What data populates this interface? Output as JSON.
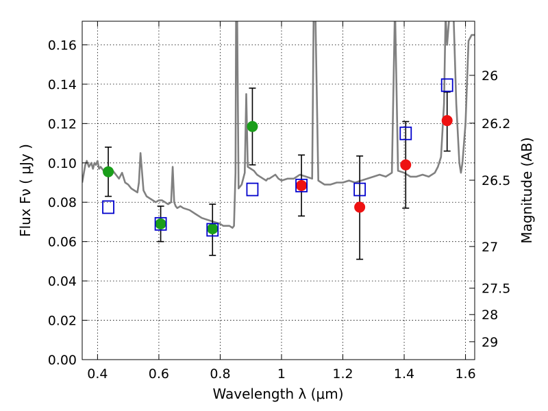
{
  "chart_data": {
    "type": "scatter",
    "title": "",
    "xlabel": "Wavelength  λ (μm)",
    "ylabel": "Flux  Fν  ( μJy )",
    "ylabel_right": "Magnitude (AB)",
    "xlim": [
      0.35,
      1.63
    ],
    "ylim": [
      0.0,
      0.172
    ],
    "grid": true,
    "x_ticks": [
      0.4,
      0.6,
      0.8,
      1.0,
      1.2,
      1.4,
      1.6
    ],
    "x_tick_labels": [
      "0.4",
      "0.6",
      "0.8",
      "1",
      "1.2",
      "1.4",
      "1.6"
    ],
    "y_ticks": [
      0.0,
      0.02,
      0.04,
      0.06,
      0.08,
      0.1,
      0.12,
      0.14,
      0.16
    ],
    "y_tick_labels": [
      "0.00",
      "0.02",
      "0.04",
      "0.06",
      "0.08",
      "0.10",
      "0.12",
      "0.14",
      "0.16"
    ],
    "right_ticks": [
      {
        "label": "26",
        "flux": 0.1445
      },
      {
        "label": "26.2",
        "flux": 0.1202
      },
      {
        "label": "26.5",
        "flux": 0.0912
      },
      {
        "label": "27",
        "flux": 0.0575
      },
      {
        "label": "27.5",
        "flux": 0.0363
      },
      {
        "label": "28",
        "flux": 0.0229
      },
      {
        "label": "29",
        "flux": 0.0091
      }
    ],
    "series": [
      {
        "color": "#1a9e1a",
        "marker": "circle",
        "points": [
          {
            "x": 0.435,
            "y": 0.0955,
            "err": [
              0.083,
              0.108
            ]
          },
          {
            "x": 0.606,
            "y": 0.069,
            "err": [
              0.06,
              0.078
            ]
          },
          {
            "x": 0.775,
            "y": 0.0665,
            "err": [
              0.053,
              0.079
            ]
          },
          {
            "x": 0.905,
            "y": 0.1185,
            "err": [
              0.099,
              0.138
            ]
          }
        ]
      },
      {
        "color": "#ee1111",
        "marker": "circle",
        "points": [
          {
            "x": 1.065,
            "y": 0.0885,
            "err": [
              0.073,
              0.104
            ]
          },
          {
            "x": 1.255,
            "y": 0.0775,
            "err": [
              0.051,
              0.1035
            ]
          },
          {
            "x": 1.405,
            "y": 0.099,
            "err": [
              0.077,
              0.121
            ]
          },
          {
            "x": 1.54,
            "y": 0.1215,
            "err": [
              0.106,
              0.136
            ]
          }
        ]
      },
      {
        "color": "#0000cc",
        "marker": "square-open",
        "points": [
          {
            "x": 0.435,
            "y": 0.0775
          },
          {
            "x": 0.606,
            "y": 0.069
          },
          {
            "x": 0.775,
            "y": 0.066
          },
          {
            "x": 0.905,
            "y": 0.0865
          },
          {
            "x": 1.065,
            "y": 0.0885
          },
          {
            "x": 1.255,
            "y": 0.0865
          },
          {
            "x": 1.405,
            "y": 0.115
          },
          {
            "x": 1.54,
            "y": 0.1395
          }
        ]
      }
    ],
    "model_spectrum": {
      "color": "#808080",
      "x": [
        0.35,
        0.36,
        0.365,
        0.372,
        0.38,
        0.385,
        0.39,
        0.395,
        0.4,
        0.405,
        0.41,
        0.42,
        0.43,
        0.44,
        0.45,
        0.46,
        0.47,
        0.48,
        0.49,
        0.5,
        0.51,
        0.52,
        0.53,
        0.535,
        0.54,
        0.55,
        0.56,
        0.57,
        0.58,
        0.59,
        0.6,
        0.61,
        0.62,
        0.63,
        0.64,
        0.645,
        0.65,
        0.655,
        0.66,
        0.67,
        0.68,
        0.7,
        0.72,
        0.74,
        0.76,
        0.78,
        0.8,
        0.81,
        0.82,
        0.83,
        0.84,
        0.845,
        0.85,
        0.852,
        0.855,
        0.86,
        0.87,
        0.88,
        0.885,
        0.89,
        0.9,
        0.91,
        0.92,
        0.93,
        0.94,
        0.95,
        0.955,
        0.96,
        0.97,
        0.98,
        0.99,
        1.0,
        1.02,
        1.04,
        1.06,
        1.08,
        1.1,
        1.105,
        1.11,
        1.12,
        1.14,
        1.16,
        1.18,
        1.2,
        1.22,
        1.24,
        1.26,
        1.28,
        1.3,
        1.32,
        1.34,
        1.36,
        1.37,
        1.38,
        1.4,
        1.42,
        1.44,
        1.46,
        1.48,
        1.5,
        1.51,
        1.52,
        1.53,
        1.535,
        1.54,
        1.55,
        1.56,
        1.57,
        1.58,
        1.585,
        1.59,
        1.6,
        1.61,
        1.62,
        1.63
      ],
      "y": [
        0.09,
        0.099,
        0.101,
        0.098,
        0.1,
        0.097,
        0.1,
        0.099,
        0.101,
        0.097,
        0.098,
        0.096,
        0.097,
        0.094,
        0.096,
        0.094,
        0.092,
        0.095,
        0.09,
        0.089,
        0.087,
        0.086,
        0.085,
        0.09,
        0.105,
        0.086,
        0.083,
        0.082,
        0.081,
        0.08,
        0.081,
        0.081,
        0.08,
        0.079,
        0.08,
        0.098,
        0.08,
        0.078,
        0.077,
        0.078,
        0.077,
        0.076,
        0.074,
        0.072,
        0.071,
        0.07,
        0.069,
        0.068,
        0.068,
        0.068,
        0.067,
        0.068,
        0.095,
        0.18,
        0.18,
        0.087,
        0.089,
        0.095,
        0.135,
        0.098,
        0.097,
        0.096,
        0.094,
        0.093,
        0.092,
        0.091,
        0.092,
        0.092,
        0.093,
        0.094,
        0.092,
        0.091,
        0.092,
        0.092,
        0.094,
        0.093,
        0.092,
        0.18,
        0.18,
        0.091,
        0.089,
        0.089,
        0.09,
        0.09,
        0.091,
        0.09,
        0.091,
        0.092,
        0.093,
        0.094,
        0.093,
        0.095,
        0.18,
        0.096,
        0.095,
        0.093,
        0.093,
        0.094,
        0.093,
        0.095,
        0.098,
        0.103,
        0.13,
        0.175,
        0.16,
        0.18,
        0.18,
        0.13,
        0.1,
        0.095,
        0.1,
        0.12,
        0.162,
        0.165,
        0.165
      ]
    }
  }
}
